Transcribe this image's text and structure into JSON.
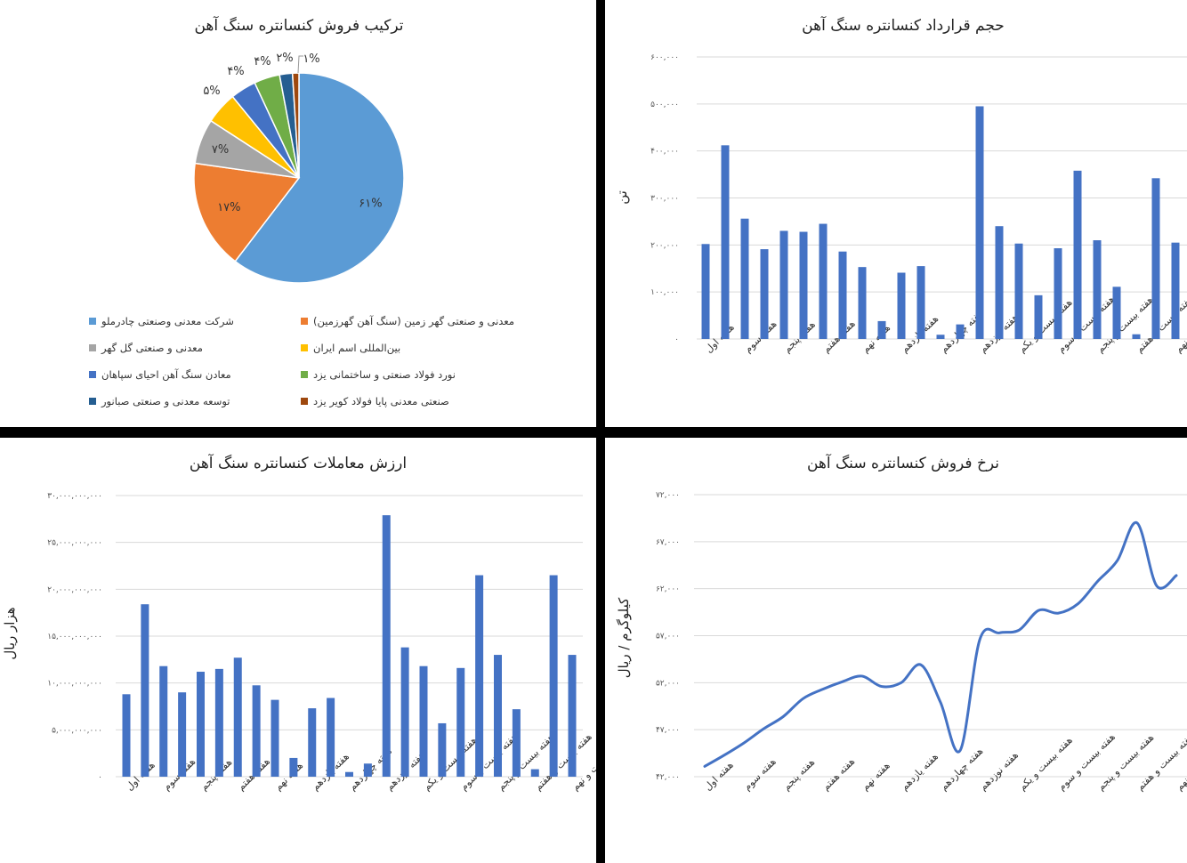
{
  "colors": {
    "bar": "#4472C4",
    "grid": "#d9d9d9"
  },
  "chart_data": [
    {
      "type": "pie",
      "title": "ترکیب فروش کنسانتره سنگ آهن",
      "slices": [
        {
          "name": "شرکت معدنی وصنعتی چادرملو",
          "value": 61,
          "label": "۶۱%",
          "color": "#5B9BD5"
        },
        {
          "name": "معدنی و صنعتی گهر زمین (سنگ آهن گهرزمین)",
          "value": 17,
          "label": "۱۷%",
          "color": "#ED7D31"
        },
        {
          "name": "معدنی و صنعتی گل گهر",
          "value": 7,
          "label": "۷%",
          "color": "#A5A5A5"
        },
        {
          "name": "بین‌المللی اسم ایران",
          "value": 5,
          "label": "۵%",
          "color": "#FFC000"
        },
        {
          "name": "معادن سنگ آهن احیای سپاهان",
          "value": 4,
          "label": "۴%",
          "color": "#4472C4"
        },
        {
          "name": "نورد فولاد صنعتی و ساختمانی یزد",
          "value": 4,
          "label": "۴%",
          "color": "#70AD47"
        },
        {
          "name": "توسعه معدنی و صنعتی صبانور",
          "value": 2,
          "label": "۲%",
          "color": "#255E91"
        },
        {
          "name": "صنعتی معدنی پایا فولاد کویر یزد",
          "value": 1,
          "label": "۱%",
          "color": "#9E480E"
        }
      ],
      "legend": "bottom"
    },
    {
      "type": "bar",
      "title": "حجم قرارداد کنسانتره سنگ آهن",
      "ylabel": "تن",
      "ylim": [
        0,
        600000
      ],
      "y_ticks": [
        0,
        100000,
        200000,
        300000,
        400000,
        500000,
        600000
      ],
      "y_tick_labels": [
        "۰",
        "۱۰۰,۰۰۰",
        "۲۰۰,۰۰۰",
        "۳۰۰,۰۰۰",
        "۴۰۰,۰۰۰",
        "۵۰۰,۰۰۰",
        "۶۰۰,۰۰۰"
      ],
      "x_tick_labels": [
        "هفته اول",
        "هفته سوم",
        "هفته پنجم",
        "هفته هفتم",
        "هفته نهم",
        "هفته یازدهم",
        "هفته چهاردهم",
        "هفته نوزدهم",
        "هفته بیست و یکم",
        "هفته بیست و سوم",
        "هفته بیست و پنجم",
        "هفته بیست و هفتم",
        "هفته بیست و نهم"
      ],
      "values": [
        202000,
        412000,
        256000,
        191000,
        230000,
        228000,
        245000,
        186000,
        153000,
        38000,
        141000,
        155000,
        9000,
        31000,
        495000,
        240000,
        203000,
        93000,
        193000,
        358000,
        210000,
        111000,
        10000,
        342000,
        205000
      ],
      "grid": true
    },
    {
      "type": "bar",
      "title": "ارزش معاملات کنسانتره سنگ آهن",
      "ylabel": "هزار ریال",
      "ylim": [
        0,
        30000000000
      ],
      "y_ticks": [
        0,
        5000000000,
        10000000000,
        15000000000,
        20000000000,
        25000000000,
        30000000000
      ],
      "y_tick_labels": [
        "۰",
        "۵,۰۰۰,۰۰۰,۰۰۰",
        "۱۰,۰۰۰,۰۰۰,۰۰۰",
        "۱۵,۰۰۰,۰۰۰,۰۰۰",
        "۲۰,۰۰۰,۰۰۰,۰۰۰",
        "۲۵,۰۰۰,۰۰۰,۰۰۰",
        "۳۰,۰۰۰,۰۰۰,۰۰۰"
      ],
      "x_tick_labels": [
        "هفته اول",
        "هفته سوم",
        "هفته پنجم",
        "هفته هفتم",
        "هفته نهم",
        "هفته یازدهم",
        "هفته چهاردهم",
        "هفته نوزدهم",
        "هفته بیست و یکم",
        "هفته بیست و سوم",
        "هفته بیست و پنجم",
        "هفته بیست و هفتم",
        "هفته بیست و نهم"
      ],
      "values": [
        8800000000,
        18400000000,
        11800000000,
        9000000000,
        11200000000,
        11500000000,
        12700000000,
        9750000000,
        8200000000,
        2000000000,
        7300000000,
        8400000000,
        500000000,
        1400000000,
        27900000000,
        13800000000,
        11800000000,
        5700000000,
        11600000000,
        21500000000,
        13000000000,
        7200000000,
        800000000,
        21500000000,
        13000000000
      ],
      "grid": true
    },
    {
      "type": "line",
      "title": "نرخ فروش کنسانتره سنگ آهن",
      "ylabel": "کیلوگرم / ریال",
      "ylim": [
        42000,
        72000
      ],
      "y_ticks": [
        42000,
        47000,
        52000,
        57000,
        62000,
        67000,
        72000
      ],
      "y_tick_labels": [
        "۴۲,۰۰۰",
        "۴۷,۰۰۰",
        "۵۲,۰۰۰",
        "۵۷,۰۰۰",
        "۶۲,۰۰۰",
        "۶۷,۰۰۰",
        "۷۲,۰۰۰"
      ],
      "x_tick_labels": [
        "هفته اول",
        "هفته سوم",
        "هفته پنجم",
        "هفته هفتم",
        "هفته نهم",
        "هفته یازدهم",
        "هفته چهاردهم",
        "هفته نوزدهم",
        "هفته بیست و یکم",
        "هفته بیست و سوم",
        "هفته بیست و پنجم",
        "هفته بیست و هفتم",
        "هفته بیست و نهم"
      ],
      "values": [
        43100,
        44300,
        45600,
        47100,
        48400,
        50300,
        51300,
        52100,
        52700,
        51600,
        52000,
        53900,
        49900,
        44800,
        56600,
        57300,
        57600,
        59700,
        59400,
        60400,
        62800,
        65000,
        69000,
        62300,
        63400
      ],
      "smooth": true,
      "grid": true
    }
  ]
}
